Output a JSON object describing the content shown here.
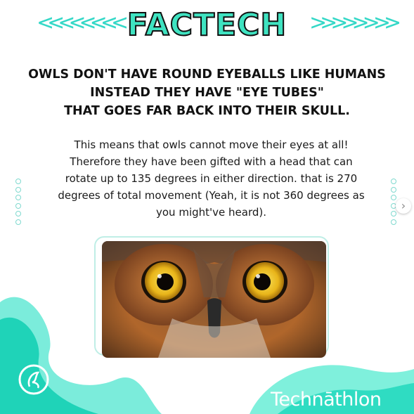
{
  "post": {
    "title": "FACTECH",
    "left_chevrons": "<<<<<<<<",
    "right_chevrons": ">>>>>>>>",
    "headline_lines": [
      "OWLS DON'T HAVE ROUND EYEBALLS LIKE HUMANS",
      "INSTEAD THEY HAVE  \"EYE TUBES\"",
      "THAT GOES FAR BACK INTO THEIR SKULL."
    ],
    "body_lines": [
      "This means that owls cannot move their eyes at all!",
      "Therefore they have been gifted with a head that can",
      "rotate up to 135 degrees in either direction. that is 270",
      "degrees of total movement (Yeah, it is not 360 degrees as",
      "you might've heard)."
    ],
    "image_subject": "owl-face-closeup",
    "brand_name": "Technāthlon",
    "next_arrow": "›"
  },
  "colors": {
    "accent": "#3fe3c1",
    "accent_dark": "#1fd3b8",
    "wave_light": "#7ff0dc"
  },
  "icons": {
    "logo": "technothlon-logo-icon",
    "next": "chevron-right-icon",
    "dots": "dot-pattern-icon"
  }
}
